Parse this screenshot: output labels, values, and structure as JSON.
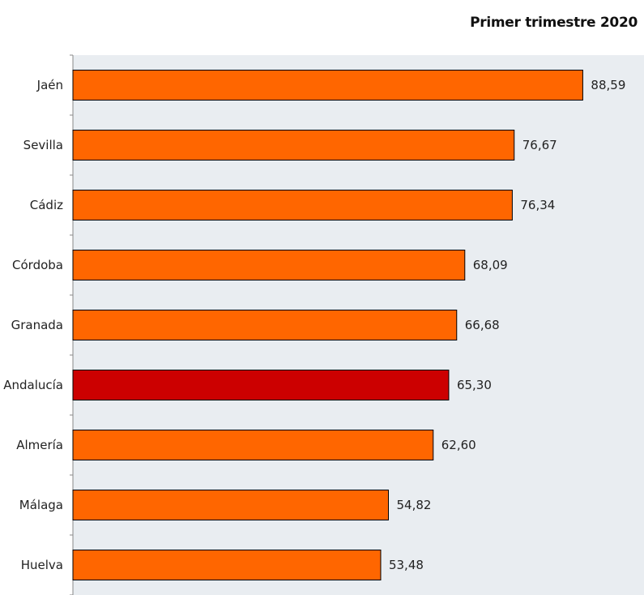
{
  "chart_data": {
    "type": "bar",
    "orientation": "horizontal",
    "title": "Primer trimestre 2020",
    "categories": [
      "Jaén",
      "Sevilla",
      "Cádiz",
      "Córdoba",
      "Granada",
      "Andalucía",
      "Almería",
      "Málaga",
      "Huelva"
    ],
    "values": [
      88.59,
      76.67,
      76.34,
      68.09,
      66.68,
      65.3,
      62.6,
      54.82,
      53.48
    ],
    "value_labels": [
      "88,59",
      "76,67",
      "76,34",
      "68,09",
      "66,68",
      "65,30",
      "62,60",
      "54,82",
      "53,48"
    ],
    "highlight": "Andalucía",
    "colors": {
      "bar": "#ff6600",
      "highlight": "#cc0000",
      "bar_border": "#000000",
      "plot_background": "#e9edf1"
    },
    "xlim": [
      0,
      100
    ],
    "grid": false,
    "legend": "none"
  }
}
